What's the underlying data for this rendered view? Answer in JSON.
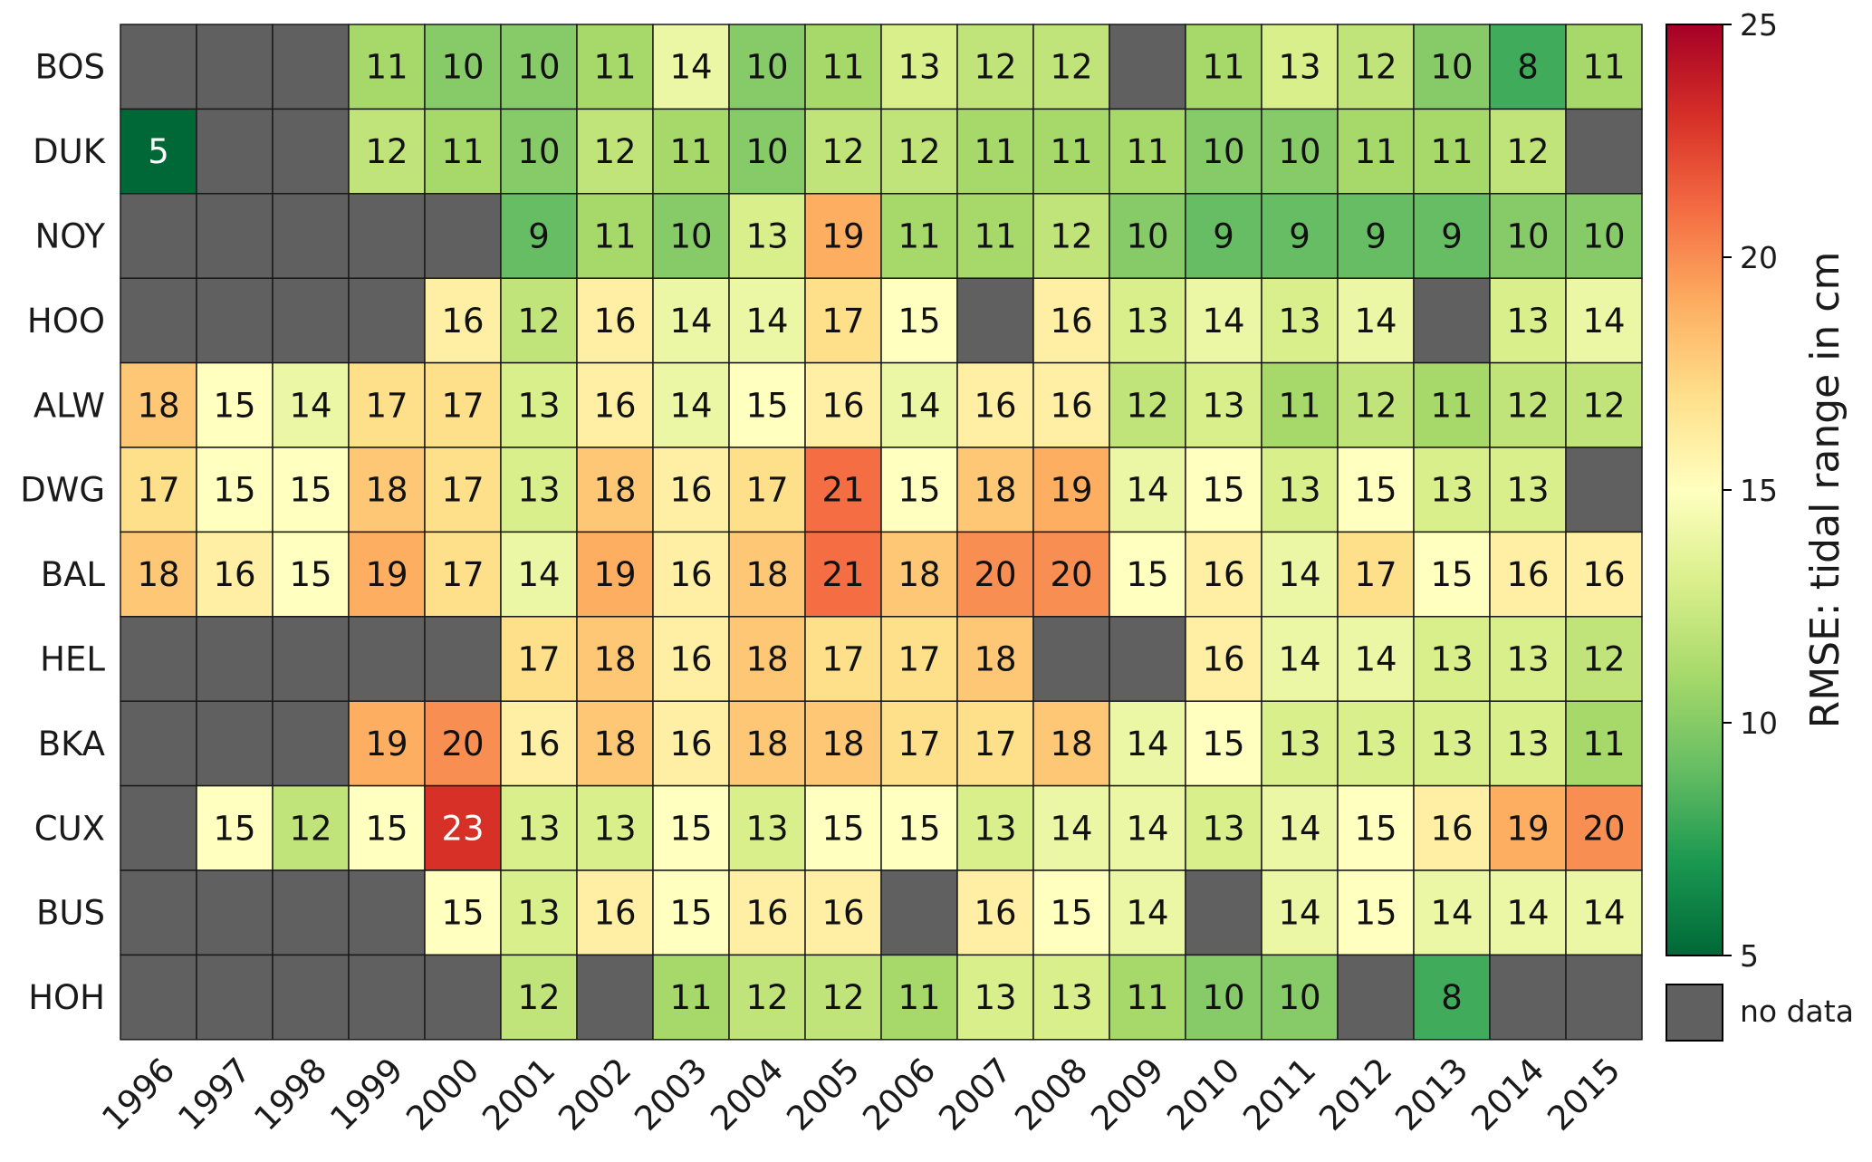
{
  "chart_data": {
    "type": "heatmap",
    "title": "",
    "xlabel": "",
    "ylabel": "",
    "x": [
      "1996",
      "1997",
      "1998",
      "1999",
      "2000",
      "2001",
      "2002",
      "2003",
      "2004",
      "2005",
      "2006",
      "2007",
      "2008",
      "2009",
      "2010",
      "2011",
      "2012",
      "2013",
      "2014",
      "2015"
    ],
    "y": [
      "BOS",
      "DUK",
      "NOY",
      "HOO",
      "ALW",
      "DWG",
      "BAL",
      "HEL",
      "BKA",
      "CUX",
      "BUS",
      "HOH"
    ],
    "values": [
      [
        null,
        null,
        null,
        11,
        10,
        10,
        11,
        14,
        10,
        11,
        13,
        12,
        12,
        null,
        11,
        13,
        12,
        10,
        8,
        11
      ],
      [
        5,
        null,
        null,
        12,
        11,
        10,
        12,
        11,
        10,
        12,
        12,
        11,
        11,
        11,
        10,
        10,
        11,
        11,
        12,
        null
      ],
      [
        null,
        null,
        null,
        null,
        null,
        9,
        11,
        10,
        13,
        19,
        11,
        11,
        12,
        10,
        9,
        9,
        9,
        9,
        10,
        10
      ],
      [
        null,
        null,
        null,
        null,
        16,
        12,
        16,
        14,
        14,
        17,
        15,
        null,
        16,
        13,
        14,
        13,
        14,
        null,
        13,
        14
      ],
      [
        18,
        15,
        14,
        17,
        17,
        13,
        16,
        14,
        15,
        16,
        14,
        16,
        16,
        12,
        13,
        11,
        12,
        11,
        12,
        12
      ],
      [
        17,
        15,
        15,
        18,
        17,
        13,
        18,
        16,
        17,
        21,
        15,
        18,
        19,
        14,
        15,
        13,
        15,
        13,
        13,
        null
      ],
      [
        18,
        16,
        15,
        19,
        17,
        14,
        19,
        16,
        18,
        21,
        18,
        20,
        20,
        15,
        16,
        14,
        17,
        15,
        16,
        16
      ],
      [
        null,
        null,
        null,
        null,
        null,
        17,
        18,
        16,
        18,
        17,
        17,
        18,
        null,
        null,
        16,
        14,
        14,
        13,
        13,
        12
      ],
      [
        null,
        null,
        null,
        19,
        20,
        16,
        18,
        16,
        18,
        18,
        17,
        17,
        18,
        14,
        15,
        13,
        13,
        13,
        13,
        11
      ],
      [
        null,
        15,
        12,
        15,
        23,
        13,
        13,
        15,
        13,
        15,
        15,
        13,
        14,
        14,
        13,
        14,
        15,
        16,
        19,
        20
      ],
      [
        null,
        null,
        null,
        null,
        15,
        13,
        16,
        15,
        16,
        16,
        null,
        16,
        15,
        14,
        null,
        14,
        15,
        14,
        14,
        14
      ],
      [
        null,
        null,
        null,
        null,
        null,
        12,
        null,
        11,
        12,
        12,
        11,
        13,
        13,
        11,
        10,
        10,
        null,
        8,
        null,
        null
      ]
    ],
    "colorbar": {
      "label": "RMSE: tidal range in cm",
      "min": 5,
      "max": 25,
      "ticks": [
        "5",
        "10",
        "15",
        "20",
        "25"
      ],
      "colormap": "RdYlGn (reversed)"
    },
    "no_data": {
      "label": "no data",
      "color": "#606060"
    },
    "grid": true
  }
}
